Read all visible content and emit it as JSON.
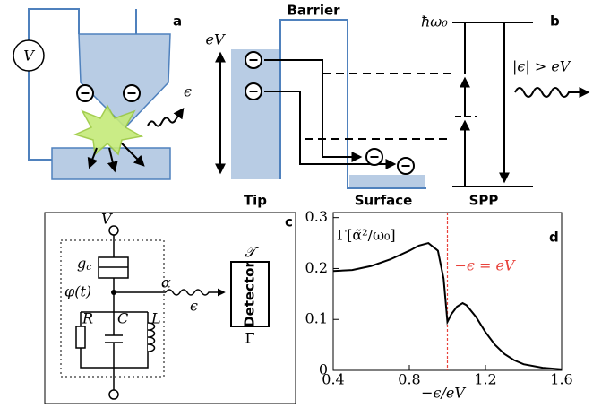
{
  "panel_a": {
    "label": "a",
    "voltmeter": "V",
    "photon": "ϵ"
  },
  "panel_b": {
    "label": "b",
    "barrier": "Barrier",
    "bias": "eV",
    "plasmon_energy": "ħω₀",
    "condition": "|ϵ| > eV",
    "tip": "Tip",
    "surface": "Surface",
    "spp": "SPP"
  },
  "panel_c": {
    "label": "c",
    "voltage": "V",
    "g_c": {
      "base": "g",
      "subscript": "c"
    },
    "phase": "φ(t)",
    "resistor": "R",
    "capacitor": "C",
    "inductor": "L",
    "coupling": "α",
    "photon": "ϵ",
    "detector": "Detector",
    "transmission": "𝒯",
    "rate": "Γ"
  },
  "chart_data": {
    "type": "line",
    "panel_label": "d",
    "ylabel": "Γ[α̃²/ω₀]",
    "xlabel": "−ϵ/eV",
    "annotation": "−ϵ = eV",
    "annotation_x": 1.0,
    "annotation_color": "#e8413a",
    "x": [
      0.4,
      0.5,
      0.6,
      0.7,
      0.8,
      0.85,
      0.9,
      0.95,
      0.98,
      1.0,
      1.02,
      1.05,
      1.08,
      1.1,
      1.15,
      1.2,
      1.25,
      1.3,
      1.35,
      1.4,
      1.5,
      1.6
    ],
    "series": [
      {
        "name": "Γ",
        "color": "#000000",
        "values": [
          0.195,
          0.197,
          0.205,
          0.218,
          0.235,
          0.245,
          0.25,
          0.235,
          0.18,
          0.095,
          0.11,
          0.125,
          0.132,
          0.128,
          0.105,
          0.075,
          0.05,
          0.032,
          0.02,
          0.012,
          0.005,
          0.002
        ]
      }
    ],
    "xlim": [
      0.4,
      1.6
    ],
    "xticks": [
      0.4,
      0.8,
      1.2,
      1.6
    ],
    "ylim": [
      0,
      0.31
    ],
    "yticks": [
      0,
      0.1,
      0.2,
      0.3
    ]
  }
}
